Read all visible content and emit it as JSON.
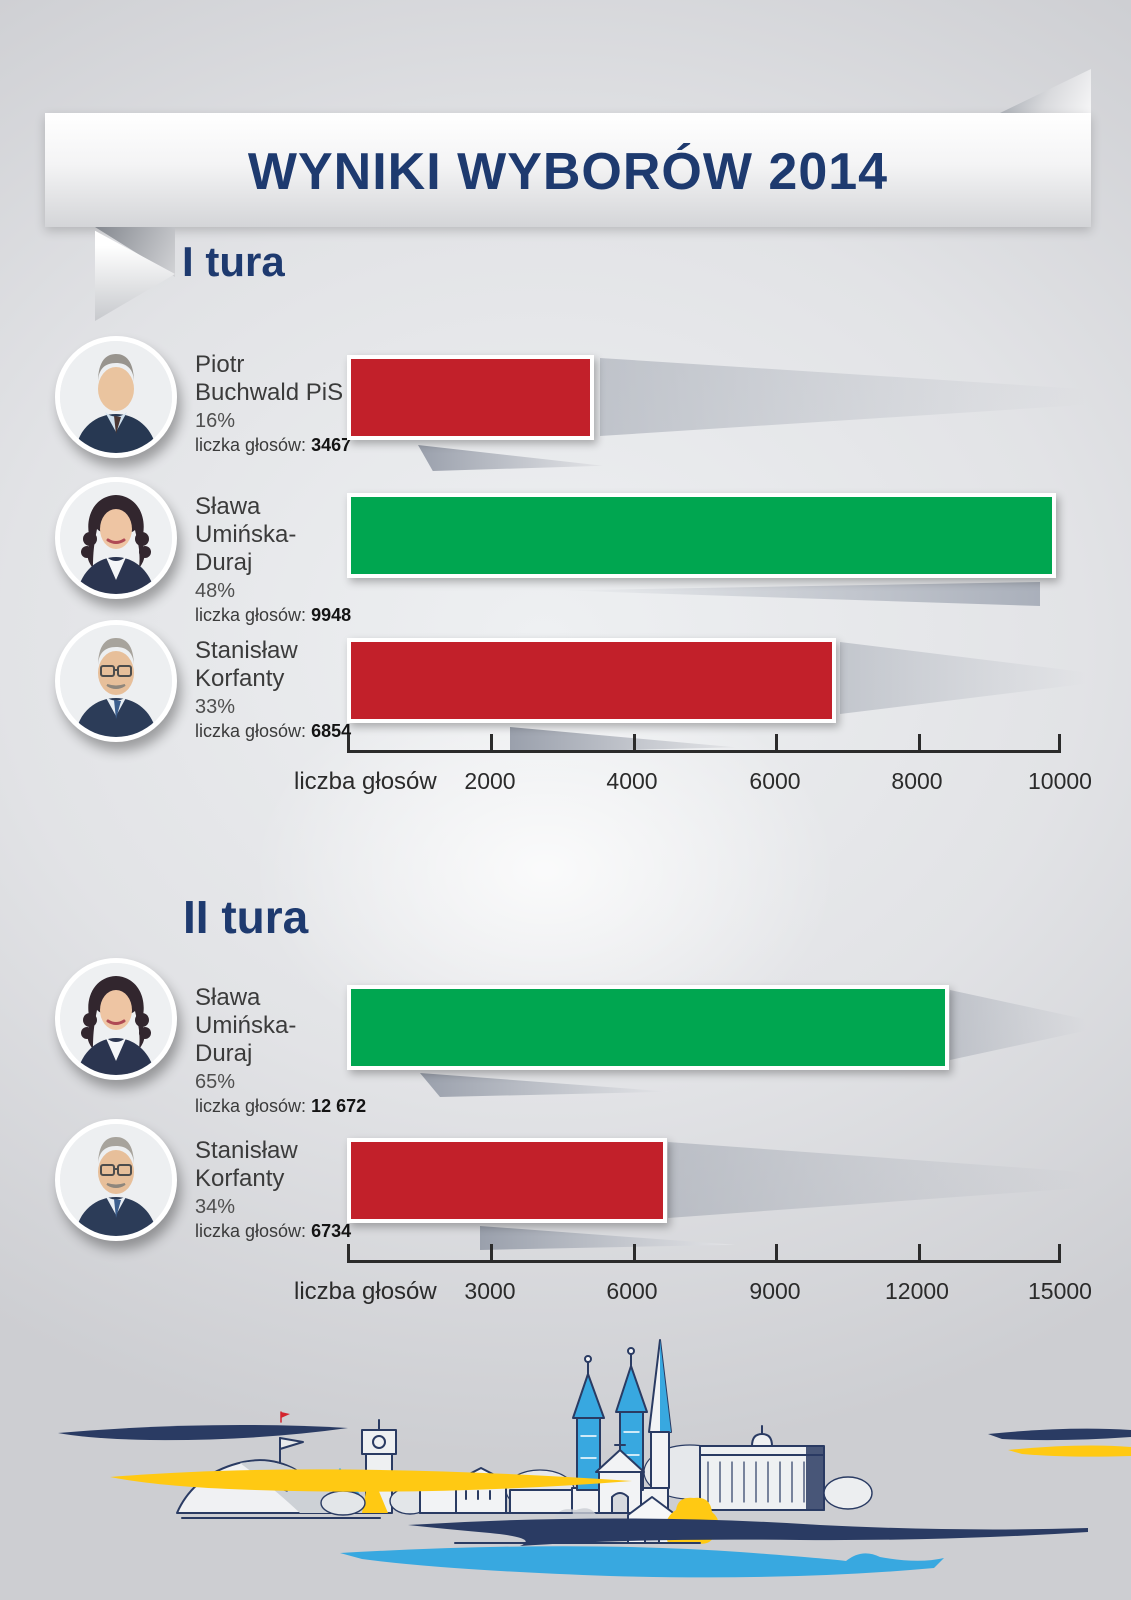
{
  "title": "WYNIKI WYBORÓW 2014",
  "labels": {
    "votes": "liczka głosów:"
  },
  "colors": {
    "navy_heading": "#1e3a6f",
    "bar_red": "#c2202a",
    "bar_green": "#00a650",
    "axis_text": "#2b2b2b",
    "skyline_line": "#2a3b63",
    "skyline_blue": "#38a8e0",
    "skyline_yellow": "#ffc913"
  },
  "rounds": [
    {
      "heading": "I tura",
      "axis": {
        "label": "liczba głosów",
        "max": 10000,
        "tick_labels": [
          "2000",
          "4000",
          "6000",
          "8000",
          "10000"
        ]
      },
      "candidates": [
        {
          "first_name": "Piotr",
          "last_name": "Buchwald PiS",
          "percent": "16%",
          "votes": "3467",
          "value": 3467,
          "color": "#c2202a",
          "photo": "older-man-gray-hair"
        },
        {
          "first_name": "Sława",
          "last_name": "Umińska-Duraj",
          "percent": "48%",
          "votes": "9948",
          "value": 9948,
          "color": "#00a650",
          "photo": "woman-dark-curly-hair"
        },
        {
          "first_name": "Stanisław",
          "last_name": "Korfanty",
          "percent": "33%",
          "votes": "6854",
          "value": 6854,
          "color": "#c2202a",
          "photo": "older-man-glasses-mustache"
        }
      ]
    },
    {
      "heading": "II tura",
      "axis": {
        "label": "liczba głosów",
        "max": 15000,
        "tick_labels": [
          "3000",
          "6000",
          "9000",
          "12000",
          "15000"
        ]
      },
      "candidates": [
        {
          "first_name": "Sława",
          "last_name": "Umińska-Duraj",
          "percent": "65%",
          "votes": "12 672",
          "value": 12672,
          "color": "#00a650",
          "photo": "woman-dark-curly-hair"
        },
        {
          "first_name": "Stanisław",
          "last_name": "Korfanty",
          "percent": "34%",
          "votes": "6734",
          "value": 6734,
          "color": "#c2202a",
          "photo": "older-man-glasses-mustache"
        }
      ]
    }
  ],
  "chart_data": [
    {
      "type": "bar",
      "orientation": "horizontal",
      "title": "I tura",
      "categories": [
        "Piotr Buchwald PiS",
        "Sława Umińska-Duraj",
        "Stanisław Korfanty"
      ],
      "values": [
        3467,
        9948,
        6854
      ],
      "percent_labels": [
        "16%",
        "48%",
        "33%"
      ],
      "bar_colors": [
        "#c2202a",
        "#00a650",
        "#c2202a"
      ],
      "xlabel": "liczba głosów",
      "xlim": [
        0,
        10000
      ],
      "xticks": [
        2000,
        4000,
        6000,
        8000,
        10000
      ],
      "grid": false,
      "legend": false
    },
    {
      "type": "bar",
      "orientation": "horizontal",
      "title": "II tura",
      "categories": [
        "Sława Umińska-Duraj",
        "Stanisław Korfanty"
      ],
      "values": [
        12672,
        6734
      ],
      "percent_labels": [
        "65%",
        "34%"
      ],
      "bar_colors": [
        "#00a650",
        "#c2202a"
      ],
      "xlabel": "liczba głosów",
      "xlim": [
        0,
        15000
      ],
      "xticks": [
        3000,
        6000,
        9000,
        12000,
        15000
      ],
      "grid": false,
      "legend": false
    }
  ],
  "footer_illustration": "piekary-slaskie-city-skyline-line-art"
}
